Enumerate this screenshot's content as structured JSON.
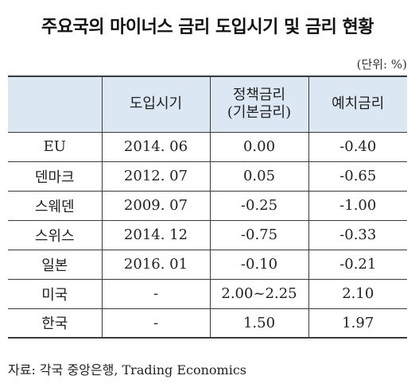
{
  "title": "주요국의 마이너스 금리 도입시기 및 금리 현황",
  "unit": "(단위: %)",
  "table": {
    "headers": {
      "country": "",
      "intro": "도입시기",
      "policy_line1": "정책금리",
      "policy_line2": "(기본금리)",
      "deposit": "예치금리"
    },
    "rows": [
      {
        "country": "EU",
        "intro": "2014. 06",
        "policy": "0.00",
        "deposit": "-0.40"
      },
      {
        "country": "덴마크",
        "intro": "2012. 07",
        "policy": "0.05",
        "deposit": "-0.65"
      },
      {
        "country": "스웨덴",
        "intro": "2009. 07",
        "policy": "-0.25",
        "deposit": "-1.00"
      },
      {
        "country": "스위스",
        "intro": "2014. 12",
        "policy": "-0.75",
        "deposit": "-0.33"
      },
      {
        "country": "일본",
        "intro": "2016. 01",
        "policy": "-0.10",
        "deposit": "-0.21"
      },
      {
        "country": "미국",
        "intro": "-",
        "policy": "2.00~2.25",
        "deposit": "2.10"
      },
      {
        "country": "한국",
        "intro": "-",
        "policy": "1.50",
        "deposit": "1.97"
      }
    ]
  },
  "source": "자료: 각국 중앙은행, Trading Economics"
}
